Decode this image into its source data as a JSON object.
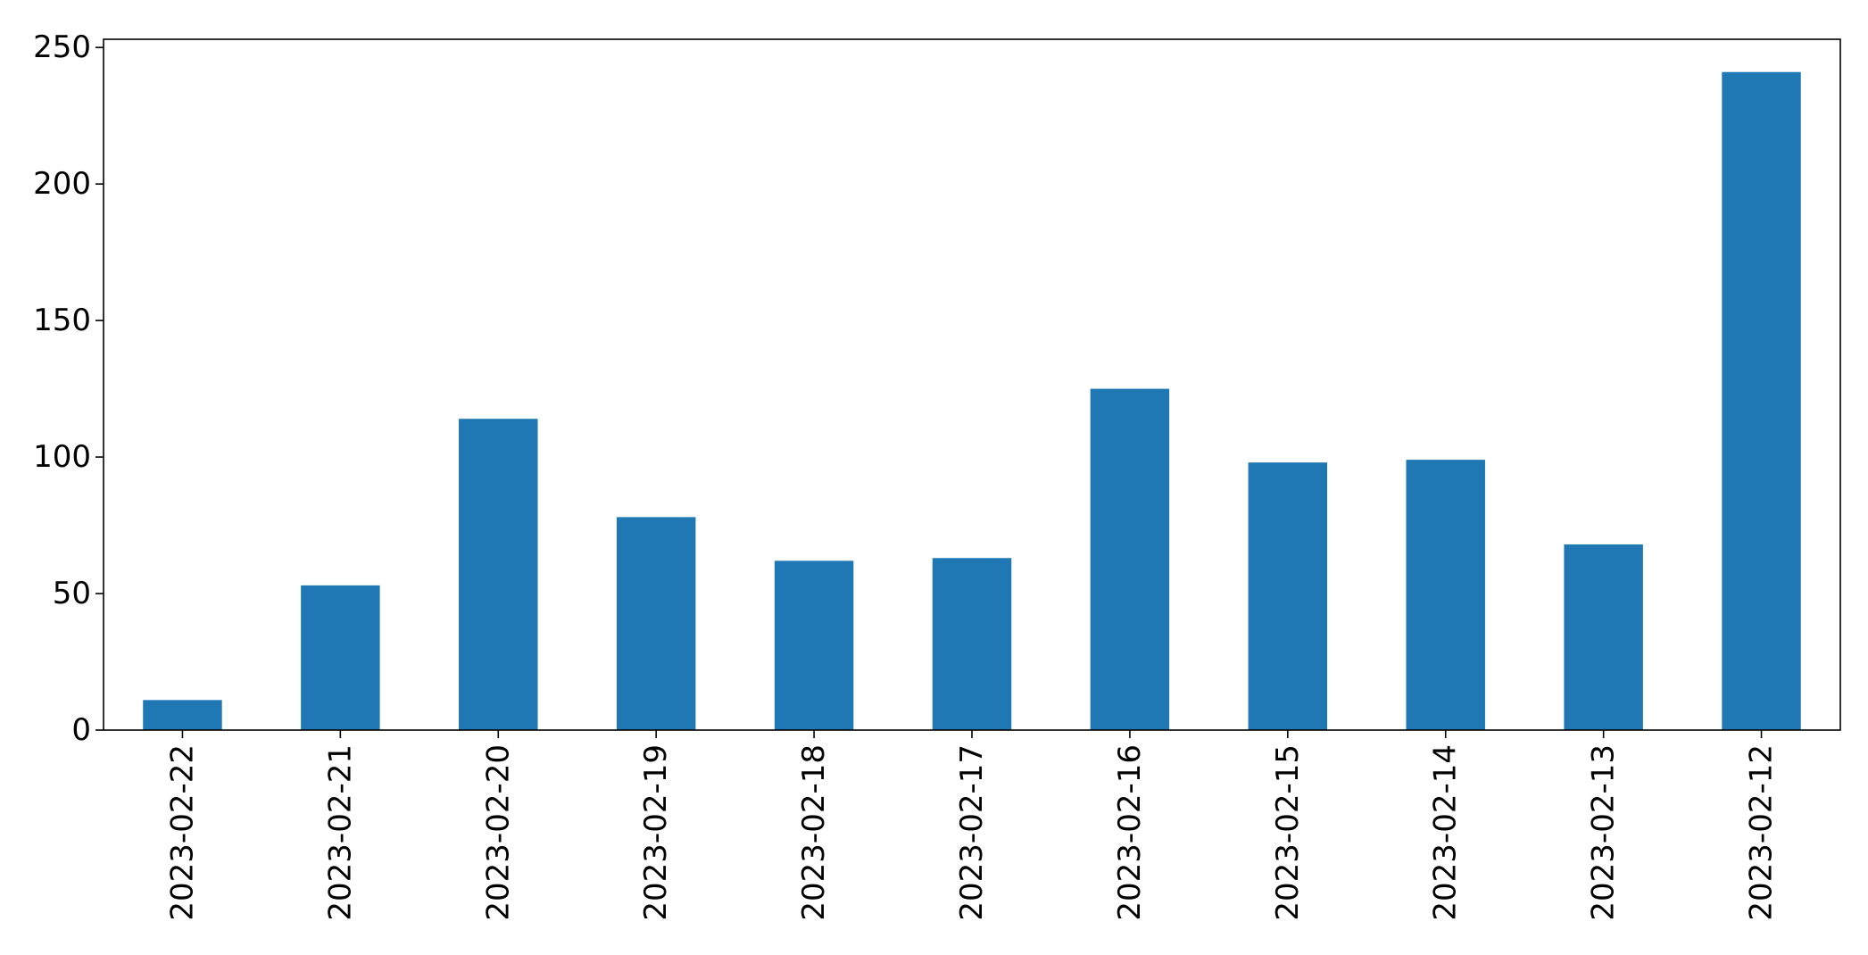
{
  "chart_data": {
    "type": "bar",
    "title": "",
    "xlabel": "",
    "ylabel": "",
    "categories": [
      "2023-02-22",
      "2023-02-21",
      "2023-02-20",
      "2023-02-19",
      "2023-02-18",
      "2023-02-17",
      "2023-02-16",
      "2023-02-15",
      "2023-02-14",
      "2023-02-13",
      "2023-02-12"
    ],
    "values": [
      11,
      53,
      114,
      78,
      62,
      63,
      125,
      98,
      99,
      68,
      241
    ],
    "ylim": [
      0,
      253
    ],
    "yticks": [
      0,
      50,
      100,
      150,
      200,
      250
    ],
    "grid": false,
    "legend": "none",
    "bar_color": "#1f77b4"
  }
}
